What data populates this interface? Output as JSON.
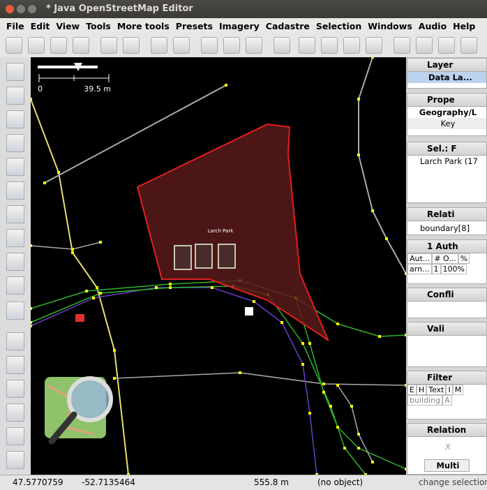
{
  "window": {
    "title": "* Java OpenStreetMap Editor"
  },
  "menu": [
    "File",
    "Edit",
    "View",
    "Tools",
    "More tools",
    "Presets",
    "Imagery",
    "Cadastre",
    "Selection",
    "Windows",
    "Audio",
    "Help"
  ],
  "toolbar": {
    "more": ">>"
  },
  "map": {
    "scale_start": "0",
    "scale_end": "39.5 m",
    "label": "Larch Park"
  },
  "panels": {
    "layers": {
      "title": "Layer",
      "item": "Data La..."
    },
    "properties": {
      "title": "Prope",
      "tab": "Geography/L",
      "column": "Key"
    },
    "selection": {
      "title": "Sel.: F",
      "item": "Larch Park (17"
    },
    "relations": {
      "title": "Relati",
      "item": "boundary[8]"
    },
    "authors": {
      "title": "1 Auth",
      "headers": [
        "Aut...",
        "# O...",
        "%"
      ],
      "row": [
        "arn...",
        "1",
        "100%"
      ]
    },
    "conflicts": {
      "title": "Confli"
    },
    "validation": {
      "title": "Vali"
    },
    "filter": {
      "title": "Filter",
      "headers": [
        "E",
        "H",
        "Text",
        "I",
        "M"
      ],
      "row": [
        "building",
        "A"
      ]
    },
    "relation_editor": {
      "title": "Relation",
      "close": "X",
      "button": "Multi"
    }
  },
  "status": {
    "lat": "47.5770759",
    "lon": "-52.7135464",
    "distance": "555.8 m",
    "object": "(no object)",
    "message": "change selection"
  }
}
